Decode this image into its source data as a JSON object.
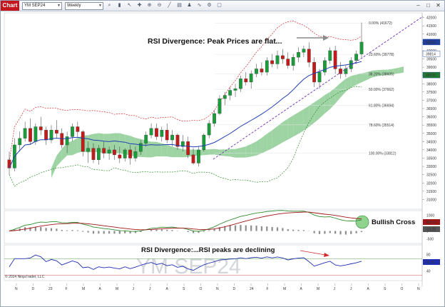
{
  "toolbar": {
    "badge": "Chart",
    "instrument": "YM SEP24",
    "interval": "Weekly",
    "icons": [
      "search-icon",
      "bars-icon",
      "pointer-icon",
      "crosshair-icon",
      "zoom-in-icon",
      "zoom-out-icon",
      "line-icon",
      "template-icon",
      "strategy-icon",
      "indicator-icon",
      "properties-icon",
      "data-box-icon"
    ],
    "window_buttons": [
      "minimize-icon",
      "maximize-icon",
      "close-icon"
    ]
  },
  "watermark": "YM SEP24",
  "copyright": "© 2024 NinjaTrader, LLC",
  "price_scale": {
    "min": 30500,
    "max": 42200,
    "ticks": [
      "42000",
      "41500",
      "41000",
      "40500",
      "40000",
      "39500",
      "39000",
      "38500",
      "38000",
      "37500",
      "37000",
      "36500",
      "36000",
      "35500",
      "35000",
      "34500",
      "34000",
      "33500",
      "33000",
      "32500",
      "32000",
      "31500",
      "31000"
    ],
    "tick_values": [
      42000,
      41500,
      41000,
      40500,
      40000,
      39500,
      39000,
      38500,
      38000,
      37500,
      37000,
      36500,
      36000,
      35500,
      35000,
      34500,
      34000,
      33500,
      33000,
      32500,
      32000,
      31500,
      31000
    ],
    "badges": [
      {
        "text": "40520",
        "value": 40520,
        "color": "#1f3f9e"
      },
      {
        "text": "39814",
        "value": 39814,
        "color": "#ffffff",
        "text_color": "#1f3f9e"
      },
      {
        "text": "38526",
        "value": 38526,
        "color": "#1f7a34"
      }
    ]
  },
  "fib_levels": [
    {
      "label": "0.00% (41672)",
      "value": 41672
    },
    {
      "label": "23.60% (39778)",
      "value": 39778
    },
    {
      "label": "38.20% (38605)",
      "value": 38605
    },
    {
      "label": "50.00% (37662)",
      "value": 37662
    },
    {
      "label": "61.80% (36694)",
      "value": 36694
    },
    {
      "label": "78.60% (35514)",
      "value": 35514
    },
    {
      "label": "100.00% (33812)",
      "value": 33812
    }
  ],
  "macd_panel": {
    "ticks": [
      "1000",
      "500",
      "0",
      "-500"
    ],
    "tick_values": [
      1000,
      500,
      0,
      -500
    ],
    "badges": [
      {
        "text": "455.91",
        "color": "#a01515"
      },
      {
        "text": "-13.25",
        "color": "#555555"
      }
    ]
  },
  "rsi_panel": {
    "ticks": [
      "80",
      "40"
    ],
    "tick_values": [
      80,
      40
    ],
    "badges": [
      {
        "text": "62.16",
        "color": "#1f2fb0"
      }
    ]
  },
  "time_axis": [
    "N",
    "D",
    "23",
    "F",
    "M",
    "A",
    "M",
    "J",
    "J",
    "A",
    "S",
    "O",
    "N",
    "D",
    "24",
    "F",
    "M",
    "A",
    "M",
    "J",
    "J",
    "A",
    "S",
    "O",
    "N"
  ],
  "annotations": {
    "price": "RSI Divergence: Peak Prices are flat...",
    "macd": "Bullish Cross",
    "rsi": "RSI Divergence:...RSI peaks are declining"
  },
  "chart_data": {
    "type": "candlestick",
    "instrument": "YM SEP24",
    "interval": "Weekly",
    "ohlc": [
      [
        33400,
        33900,
        32500,
        32900
      ],
      [
        32900,
        34700,
        32700,
        34300
      ],
      [
        34300,
        35100,
        33900,
        34700
      ],
      [
        34700,
        35700,
        34500,
        35300
      ],
      [
        35300,
        35900,
        34300,
        34500
      ],
      [
        34500,
        35600,
        34300,
        35400
      ],
      [
        35400,
        36000,
        34900,
        35200
      ],
      [
        35200,
        35400,
        34300,
        34600
      ],
      [
        34600,
        35500,
        34400,
        35200
      ],
      [
        35200,
        35800,
        34700,
        35000
      ],
      [
        35000,
        35300,
        34100,
        34300
      ],
      [
        34300,
        35100,
        33800,
        34800
      ],
      [
        34800,
        35600,
        34500,
        35400
      ],
      [
        35400,
        35700,
        34800,
        35100
      ],
      [
        35100,
        35200,
        33600,
        33900
      ],
      [
        33900,
        34500,
        33200,
        34100
      ],
      [
        34100,
        34400,
        33200,
        33400
      ],
      [
        33400,
        34300,
        33100,
        34100
      ],
      [
        34100,
        34500,
        33500,
        33800
      ],
      [
        33800,
        34200,
        33400,
        34000
      ],
      [
        34000,
        34300,
        33400,
        33700
      ],
      [
        33700,
        34200,
        33200,
        33500
      ],
      [
        33500,
        34100,
        33300,
        34000
      ],
      [
        34000,
        34300,
        33100,
        33500
      ],
      [
        33500,
        34200,
        33300,
        33900
      ],
      [
        33900,
        34600,
        33700,
        34400
      ],
      [
        34400,
        35100,
        34200,
        34900
      ],
      [
        34900,
        35600,
        34700,
        35300
      ],
      [
        35300,
        35600,
        34600,
        34800
      ],
      [
        34800,
        35400,
        34500,
        35200
      ],
      [
        35200,
        35600,
        34400,
        34600
      ],
      [
        34600,
        35200,
        34200,
        34900
      ],
      [
        34900,
        35000,
        34000,
        34200
      ],
      [
        34200,
        34900,
        33900,
        34500
      ],
      [
        34500,
        34800,
        33500,
        33700
      ],
      [
        33700,
        34100,
        33100,
        33200
      ],
      [
        33200,
        34200,
        33000,
        34000
      ],
      [
        34000,
        35000,
        33900,
        34900
      ],
      [
        34900,
        35800,
        34700,
        35600
      ],
      [
        35600,
        36400,
        35400,
        36200
      ],
      [
        36200,
        37300,
        36100,
        37100
      ],
      [
        37100,
        37500,
        36700,
        37300
      ],
      [
        37300,
        37800,
        37000,
        37600
      ],
      [
        37600,
        38000,
        37200,
        37700
      ],
      [
        37700,
        38500,
        37500,
        38300
      ],
      [
        38300,
        38700,
        37900,
        38100
      ],
      [
        38100,
        38800,
        37700,
        38600
      ],
      [
        38600,
        39200,
        38400,
        38900
      ],
      [
        38900,
        39300,
        38500,
        38700
      ],
      [
        38700,
        39600,
        38500,
        39400
      ],
      [
        39400,
        39800,
        39000,
        39200
      ],
      [
        39200,
        40000,
        38900,
        39700
      ],
      [
        39700,
        40100,
        39200,
        39500
      ],
      [
        39500,
        39900,
        38900,
        39100
      ],
      [
        39100,
        39800,
        38800,
        39600
      ],
      [
        39600,
        40200,
        39300,
        39900
      ],
      [
        39900,
        40300,
        39600,
        40100
      ],
      [
        40100,
        40500,
        39000,
        39300
      ],
      [
        39300,
        39600,
        37800,
        38100
      ],
      [
        38100,
        38900,
        37700,
        38700
      ],
      [
        38700,
        39600,
        38500,
        39400
      ],
      [
        39400,
        40200,
        39200,
        40000
      ],
      [
        40000,
        40300,
        38600,
        38900
      ],
      [
        38900,
        39300,
        38300,
        38600
      ],
      [
        38600,
        39100,
        38400,
        38900
      ],
      [
        38900,
        39600,
        38700,
        39400
      ],
      [
        39400,
        40000,
        39200,
        39800
      ],
      [
        39800,
        41700,
        39600,
        40520
      ]
    ],
    "ylim": [
      30500,
      42200
    ]
  }
}
